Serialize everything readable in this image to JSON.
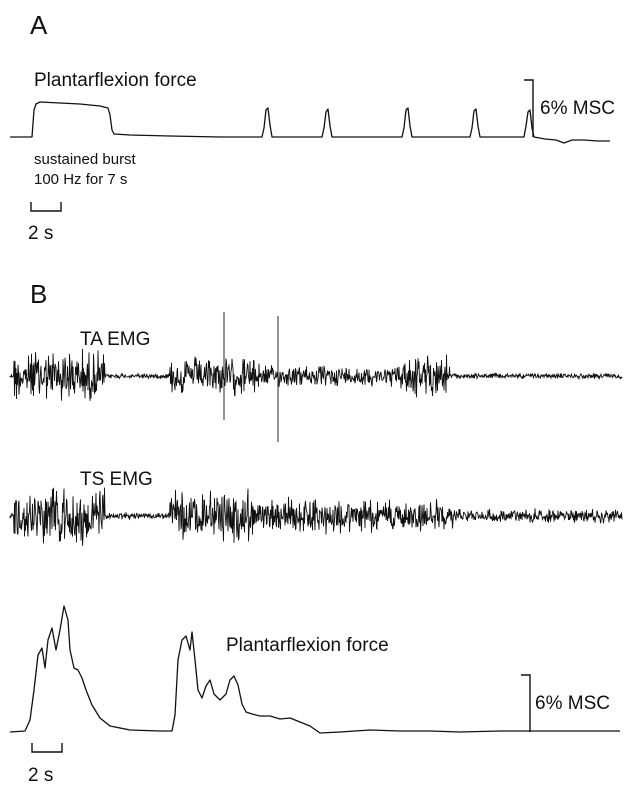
{
  "panel_a": {
    "letter": "A",
    "force_label": "Plantarflexion force",
    "scale_label": "6% MSC",
    "stim_line1": "sustained burst",
    "stim_line2": "100 Hz for 7 s",
    "time_scale": "2 s"
  },
  "panel_b": {
    "letter": "B",
    "ta_label": "TA EMG",
    "ts_label": "TS EMG",
    "force_label": "Plantarflexion force",
    "scale_label": "6% MSC",
    "time_scale": "2 s"
  }
}
